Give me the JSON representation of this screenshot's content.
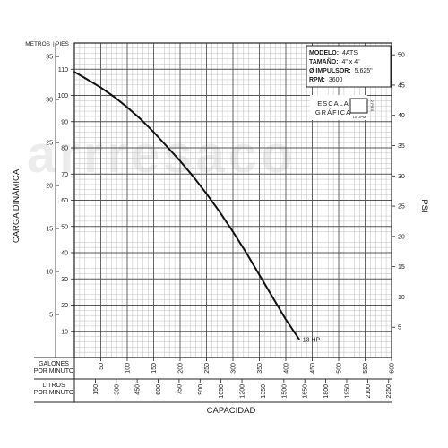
{
  "chart_data": {
    "type": "line",
    "unit_labels": {
      "meters": "METROS",
      "feet": "PIES"
    },
    "left_axis_label": "CARGA DINÁMICA",
    "right_axis_label": "PSI",
    "x_label": "CAPACIDAD",
    "gpm_row_label": [
      "GALONES",
      "POR MINUTO"
    ],
    "lpm_row_label": [
      "LITROS",
      "POR MINUTO"
    ],
    "meter_ticks": [
      5,
      10,
      15,
      20,
      25,
      30,
      35
    ],
    "feet_ticks": [
      10,
      20,
      30,
      40,
      50,
      60,
      70,
      80,
      90,
      100,
      110
    ],
    "psi_ticks": [
      5,
      10,
      15,
      20,
      25,
      30,
      35,
      40,
      45,
      50
    ],
    "gpm_ticks": [
      50,
      100,
      150,
      200,
      250,
      300,
      350,
      400,
      450,
      500,
      550,
      600
    ],
    "lpm_ticks": [
      150,
      300,
      450,
      600,
      750,
      900,
      1050,
      1200,
      1350,
      1500,
      1650,
      1800,
      1950,
      2100,
      2250
    ],
    "xlim_gpm": [
      0,
      600
    ],
    "ylim_feet": [
      0,
      120
    ],
    "grid": true,
    "series": [
      {
        "name": "13 HP",
        "x": [
          0,
          25,
          50,
          75,
          100,
          125,
          150,
          175,
          200,
          225,
          250,
          275,
          300,
          325,
          350,
          375,
          400,
          425
        ],
        "y": [
          109,
          106,
          103,
          99.5,
          95.5,
          91,
          86,
          80.5,
          75,
          69,
          62.5,
          55.5,
          48,
          40,
          31.5,
          23,
          14.5,
          7
        ]
      }
    ],
    "info_box": [
      {
        "key": "MODELO:",
        "value": "4ATS"
      },
      {
        "key": "TAMAÑO:",
        "value": "4\" x 4\""
      },
      {
        "key": "Ø IMPULSOR:",
        "value": "5.625\""
      },
      {
        "key": "RPM:",
        "value": "3600"
      }
    ],
    "scale_legend": {
      "title_1": "ESCALA",
      "title_2": "GRÁFICA",
      "vertical": "2 PIES",
      "horizontal": "10 GPM"
    },
    "watermark": "arrresaco"
  }
}
